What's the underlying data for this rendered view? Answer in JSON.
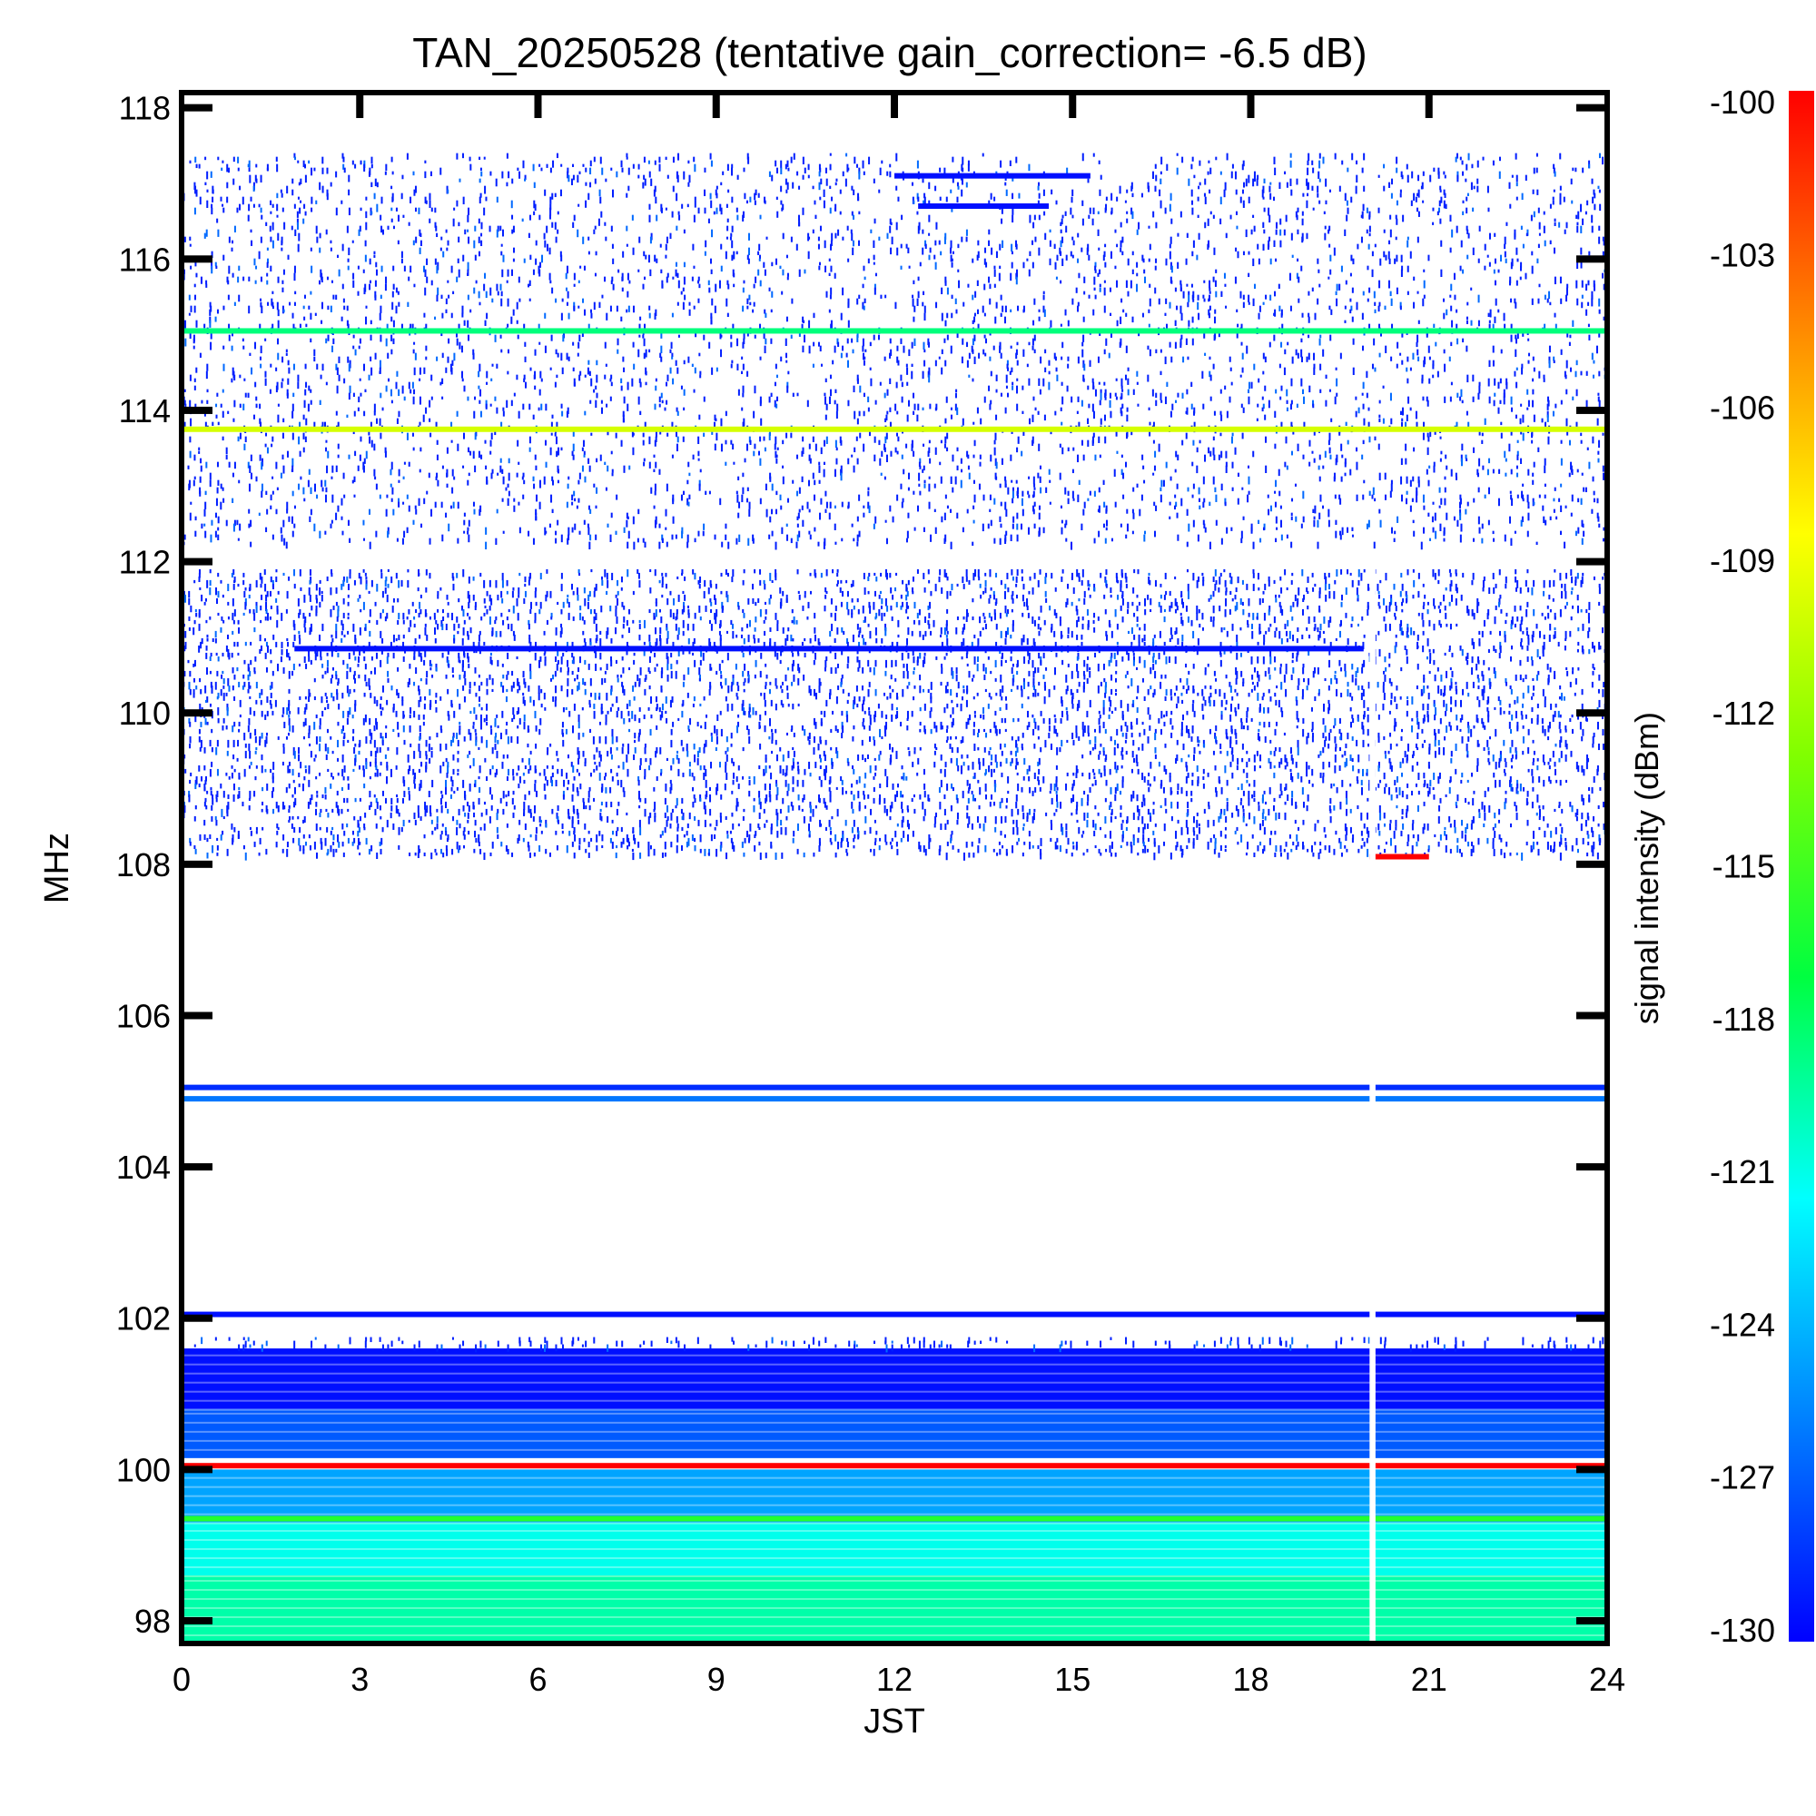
{
  "chart_data": {
    "type": "heatmap",
    "title": "TAN_20250528 (tentative gain_correction= -6.5 dB)",
    "xlabel": "JST",
    "ylabel": "MHz",
    "colorbar_label": "signal intensity (dBm)",
    "xlim": [
      0,
      24
    ],
    "ylim": [
      97.7,
      118.2
    ],
    "xticks": [
      0,
      3,
      6,
      9,
      12,
      15,
      18,
      21,
      24
    ],
    "yticks": [
      98,
      100,
      102,
      104,
      106,
      108,
      110,
      112,
      114,
      116,
      118
    ],
    "colorbar_range": [
      -130,
      -100
    ],
    "colorbar_ticks": [
      -100,
      -103,
      -106,
      -109,
      -112,
      -115,
      -118,
      -121,
      -124,
      -127,
      -130
    ],
    "colormap": [
      "#0000ff",
      "#0080ff",
      "#00ffff",
      "#00ff40",
      "#80ff00",
      "#ffff00",
      "#ff8000",
      "#ff0000"
    ],
    "data_gap_jst": [
      20.0,
      20.1
    ],
    "features": {
      "noise_bands": [
        {
          "freq_range": [
            112.2,
            117.4
          ],
          "density": 0.32,
          "level": -129
        },
        {
          "freq_range": [
            108.1,
            111.9
          ],
          "density": 0.55,
          "level": -129
        },
        {
          "freq_range": [
            101.6,
            101.75
          ],
          "density": 0.5,
          "level": -129
        }
      ],
      "gradient_bands": [
        {
          "freq_range": [
            97.7,
            98.6
          ],
          "level": -119.5
        },
        {
          "freq_range": [
            98.6,
            99.3
          ],
          "level": -121
        },
        {
          "freq_range": [
            99.3,
            100.0
          ],
          "level": -124.5
        },
        {
          "freq_range": [
            100.15,
            100.8
          ],
          "level": -127
        },
        {
          "freq_range": [
            100.8,
            101.6
          ],
          "level": -129.5
        }
      ],
      "lines": [
        {
          "freq": 115.05,
          "level": -118.5,
          "jst_range": [
            0,
            24
          ]
        },
        {
          "freq": 113.75,
          "level": -110,
          "jst_range": [
            0,
            24
          ]
        },
        {
          "freq": 110.85,
          "level": -129.5,
          "jst_range": [
            1.9,
            19.9
          ]
        },
        {
          "freq": 117.1,
          "level": -129.5,
          "jst_range": [
            12.0,
            15.3
          ]
        },
        {
          "freq": 116.7,
          "level": -129.5,
          "jst_range": [
            12.4,
            14.6
          ]
        },
        {
          "freq": 105.05,
          "level": -128.5,
          "jst_range": [
            0,
            24
          ]
        },
        {
          "freq": 104.9,
          "level": -126,
          "jst_range": [
            0,
            24
          ]
        },
        {
          "freq": 102.05,
          "level": -129.5,
          "jst_range": [
            0,
            24
          ]
        },
        {
          "freq": 100.05,
          "level": -100,
          "jst_range": [
            0,
            24
          ]
        },
        {
          "freq": 99.35,
          "level": -116,
          "jst_range": [
            0,
            24
          ]
        },
        {
          "freq": 108.1,
          "level": -100,
          "jst_range": [
            20.0,
            21.0
          ]
        }
      ]
    }
  }
}
